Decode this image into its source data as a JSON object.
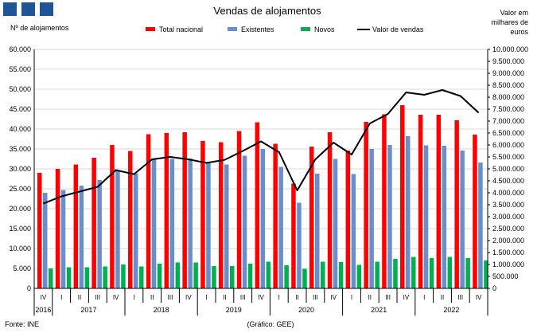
{
  "header": {
    "logo_color": "#1f5597"
  },
  "chart_data": {
    "type": "bar",
    "title": "Vendas de alojamentos",
    "ylabel_left": "Nº de alojamentos",
    "ylabel_right": [
      "Valor em",
      "milhares de",
      "euros"
    ],
    "source": "Fonte: INE",
    "credit": "(Gráfico: GEE)",
    "categories": [
      "IV",
      "I",
      "II",
      "III",
      "IV",
      "I",
      "II",
      "III",
      "IV",
      "I",
      "II",
      "III",
      "IV",
      "I",
      "II",
      "III",
      "IV",
      "I",
      "II",
      "III",
      "IV",
      "I",
      "II",
      "III",
      "IV"
    ],
    "years": [
      {
        "label": "2016",
        "start": 0,
        "end": 0
      },
      {
        "label": "2017",
        "start": 1,
        "end": 4
      },
      {
        "label": "2018",
        "start": 5,
        "end": 8
      },
      {
        "label": "2019",
        "start": 9,
        "end": 12
      },
      {
        "label": "2020",
        "start": 13,
        "end": 16
      },
      {
        "label": "2021",
        "start": 17,
        "end": 20
      },
      {
        "label": "2022",
        "start": 21,
        "end": 24
      }
    ],
    "ylim_left": [
      0,
      60000
    ],
    "yticks_left": [
      "0",
      "5.000",
      "10.000",
      "15.000",
      "20.000",
      "25.000",
      "30.000",
      "35.000",
      "40.000",
      "45.000",
      "50.000",
      "55.000",
      "60.000"
    ],
    "ylim_right": [
      0,
      10000000
    ],
    "yticks_right": [
      "0",
      "500.000",
      "1.000.000",
      "1.500.000",
      "2.000.000",
      "2.500.000",
      "3.000.000",
      "3.500.000",
      "4.000.000",
      "4.500.000",
      "5.000.000",
      "5.500.000",
      "6.000.000",
      "6.500.000",
      "7.000.000",
      "7.500.000",
      "8.000.000",
      "8.500.000",
      "9.000.000",
      "9.500.000",
      "10.000.000"
    ],
    "series": [
      {
        "name": "Total nacional",
        "color": "#ff0000",
        "axis": "left",
        "kind": "bar",
        "values": [
          29000,
          30000,
          31100,
          32800,
          36000,
          34500,
          38700,
          39000,
          39200,
          37000,
          36700,
          39500,
          41700,
          36300,
          26300,
          35600,
          39200,
          34600,
          41800,
          43700,
          46000,
          43600,
          43600,
          42200,
          38600
        ]
      },
      {
        "name": "Existentes",
        "color": "#6a8ec9",
        "axis": "left",
        "kind": "bar",
        "values": [
          24000,
          24700,
          25800,
          27200,
          29700,
          28900,
          32500,
          32500,
          32600,
          31400,
          31100,
          33300,
          35000,
          30500,
          21500,
          28800,
          32500,
          28700,
          35000,
          36000,
          38200,
          35900,
          35800,
          34600,
          31600
        ]
      },
      {
        "name": "Novos",
        "color": "#00b050",
        "axis": "left",
        "kind": "bar",
        "values": [
          5000,
          5300,
          5300,
          5500,
          6000,
          5500,
          6200,
          6500,
          6500,
          5600,
          5600,
          6200,
          6700,
          5800,
          4900,
          6700,
          6600,
          5900,
          6700,
          7400,
          7900,
          7600,
          7900,
          7600,
          7000
        ]
      },
      {
        "name": "Valor de vendas",
        "color": "#000000",
        "axis": "right",
        "kind": "line",
        "values": [
          3550000,
          3850000,
          4050000,
          4250000,
          4950000,
          4780000,
          5400000,
          5500000,
          5400000,
          5250000,
          5380000,
          5750000,
          6150000,
          5700000,
          4100000,
          5400000,
          6100000,
          5600000,
          6900000,
          7300000,
          8200000,
          8100000,
          8300000,
          8050000,
          7350000
        ]
      }
    ],
    "grid": true,
    "legend_position": "top"
  }
}
